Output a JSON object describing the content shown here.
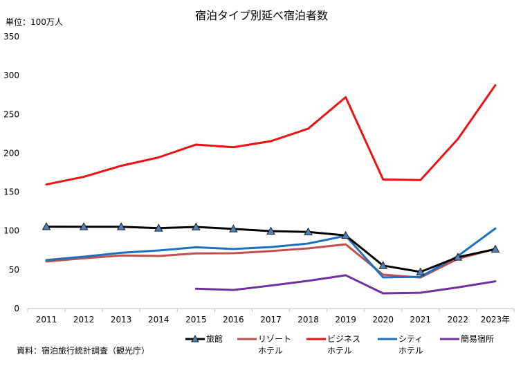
{
  "chart_data": {
    "type": "line",
    "title": "宿泊タイプ別延べ宿泊者数",
    "unit_label": "単位：100万人",
    "source": "資料：宿泊旅行統計調査（観光庁）",
    "categories": [
      "2011",
      "2012",
      "2013",
      "2014",
      "2015",
      "2016",
      "2017",
      "2018",
      "2019",
      "2020",
      "2021",
      "2022",
      "2023年"
    ],
    "ylim": [
      0,
      350
    ],
    "yticks": [
      0,
      50,
      100,
      150,
      200,
      250,
      300,
      350
    ],
    "grid": false,
    "legend_position": "bottom",
    "series": [
      {
        "name": "旅館",
        "legend_lines": [
          "旅館"
        ],
        "color": "#000000",
        "marker": "triangle",
        "marker_color": "#4f81bd",
        "values": [
          105.4,
          105.3,
          105.3,
          103.5,
          105.1,
          102.5,
          99.7,
          98.6,
          94.2,
          55.4,
          47.2,
          66.2,
          76.5
        ]
      },
      {
        "name": "リゾートホテル",
        "legend_lines": [
          "リゾート",
          "ホテル"
        ],
        "color": "#c0504d",
        "marker": "none",
        "values": [
          60.6,
          64.8,
          68.3,
          67.7,
          71.0,
          71.3,
          74.0,
          77.5,
          82.7,
          43.6,
          40.0,
          64.1,
          76.9
        ]
      },
      {
        "name": "ビジネスホテル",
        "legend_lines": [
          "ビジネス",
          "ホテル"
        ],
        "color": "#ee1111",
        "marker": "none",
        "values": [
          159.8,
          169.6,
          183.8,
          194.6,
          211.1,
          207.7,
          215.5,
          231.6,
          272.1,
          166.2,
          165.4,
          218.3,
          287.5
        ]
      },
      {
        "name": "シティホテル",
        "legend_lines": [
          "シティ",
          "ホテル"
        ],
        "color": "#1f6fbf",
        "marker": "none",
        "values": [
          62.5,
          66.8,
          71.8,
          74.8,
          78.9,
          76.7,
          79.2,
          83.7,
          93.7,
          40.2,
          40.9,
          67.6,
          103.1
        ]
      },
      {
        "name": "簡易宿所",
        "legend_lines": [
          "簡易宿所"
        ],
        "color": "#7030a0",
        "marker": "none",
        "values": [
          null,
          null,
          null,
          null,
          25.6,
          23.9,
          29.6,
          35.7,
          42.9,
          19.6,
          20.4,
          27.3,
          35.1
        ]
      }
    ]
  }
}
